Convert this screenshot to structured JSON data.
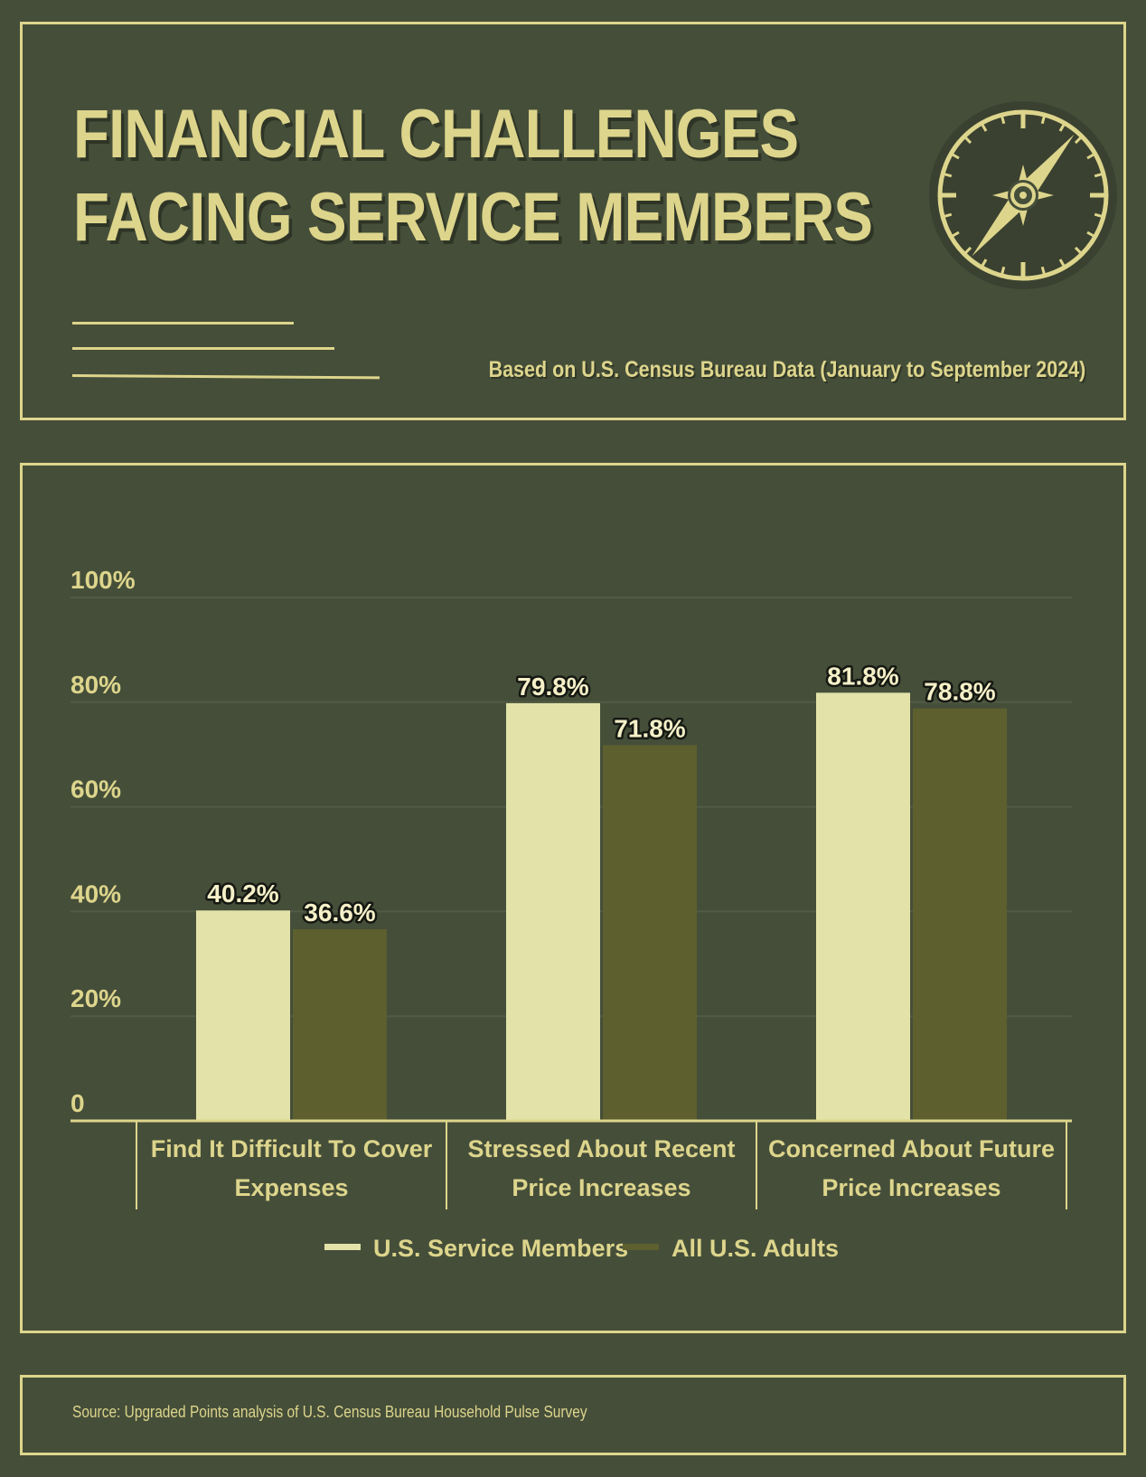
{
  "header": {
    "title_line_1": "FINANCIAL CHALLENGES",
    "title_line_2": "FACING SERVICE MEMBERS",
    "subtitle": "Based on U.S. Census Bureau Data (January to September 2024)"
  },
  "icons": {
    "compass": "compass-icon"
  },
  "colors": {
    "background": "#454e39",
    "accent": "#ddd58c",
    "service_members": "#e3e2a9",
    "all_adults": "#5d5f2f",
    "gridline": "#525b45"
  },
  "chart_data": {
    "type": "bar",
    "categories": [
      [
        "Find It Difficult To Cover",
        "Expenses"
      ],
      [
        "Stressed About Recent",
        "Price Increases"
      ],
      [
        "Concerned About Future",
        "Price Increases"
      ]
    ],
    "series": [
      {
        "name": "U.S. Service Members",
        "values": [
          40.2,
          79.8,
          81.8
        ],
        "labels": [
          "40.2%",
          "79.8%",
          "81.8%"
        ],
        "color": "#e3e2a9"
      },
      {
        "name": "All U.S. Adults",
        "values": [
          36.6,
          71.8,
          78.8
        ],
        "labels": [
          "36.6%",
          "71.8%",
          "78.8%"
        ],
        "color": "#5d5f2f"
      }
    ],
    "y_ticks": [
      0,
      20,
      40,
      60,
      80,
      100
    ],
    "y_tick_labels": [
      "0",
      "20%",
      "40%",
      "60%",
      "80%",
      "100%"
    ],
    "ylim": [
      0,
      100
    ],
    "grid": true,
    "legend_position": "bottom-center"
  },
  "footer": {
    "source": "Source: Upgraded Points analysis of U.S. Census Bureau Household Pulse Survey"
  }
}
